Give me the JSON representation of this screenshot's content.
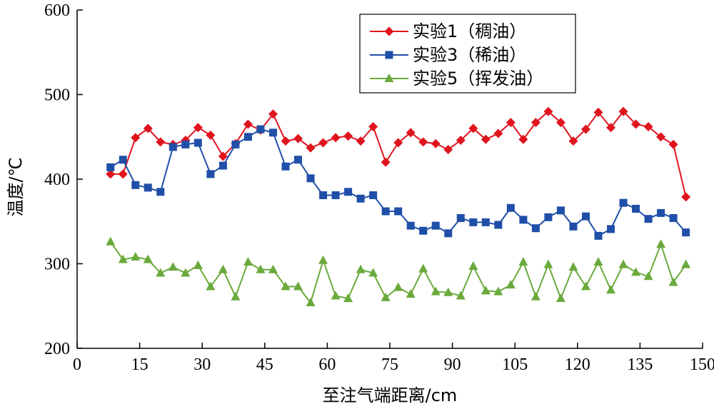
{
  "chart_data": {
    "type": "line",
    "title": "",
    "xlabel": "至注气端距离/cm",
    "ylabel": "温度/℃",
    "xlim": [
      0,
      150
    ],
    "ylim": [
      200,
      600
    ],
    "xticks": [
      0,
      15,
      30,
      45,
      60,
      75,
      90,
      105,
      120,
      135,
      150
    ],
    "yticks": [
      200,
      300,
      400,
      500,
      600
    ],
    "x_tick_labels": [
      "0",
      "15",
      "30",
      "45",
      "60",
      "75",
      "90",
      "105",
      "120",
      "135",
      "150"
    ],
    "y_tick_labels": [
      "200",
      "300",
      "400",
      "500",
      "600"
    ],
    "grid": false,
    "legend_position": "top-right",
    "series": [
      {
        "name": "实验1（稠油）",
        "color": "#e0141e",
        "marker": "diamond",
        "x": [
          8,
          11,
          14,
          17,
          20,
          23,
          26,
          29,
          32,
          35,
          38,
          41,
          44,
          47,
          50,
          53,
          56,
          59,
          62,
          65,
          68,
          71,
          74,
          77,
          80,
          83,
          86,
          89,
          92,
          95,
          98,
          101,
          104,
          107,
          110,
          113,
          116,
          119,
          122,
          125,
          128,
          131,
          134,
          137,
          140,
          143,
          146
        ],
        "y": [
          406,
          406,
          449,
          460,
          444,
          441,
          446,
          461,
          452,
          427,
          442,
          465,
          458,
          477,
          445,
          448,
          437,
          443,
          449,
          451,
          445,
          462,
          420,
          443,
          455,
          444,
          442,
          435,
          446,
          460,
          447,
          454,
          467,
          447,
          467,
          480,
          467,
          445,
          459,
          479,
          461,
          480,
          465,
          462,
          450,
          441,
          379
        ]
      },
      {
        "name": "实验3（稀油）",
        "color": "#1f4fa8",
        "marker": "square",
        "x": [
          8,
          11,
          14,
          17,
          20,
          23,
          26,
          29,
          32,
          35,
          38,
          41,
          44,
          47,
          50,
          53,
          56,
          59,
          62,
          65,
          68,
          71,
          74,
          77,
          80,
          83,
          86,
          89,
          92,
          95,
          98,
          101,
          104,
          107,
          110,
          113,
          116,
          119,
          122,
          125,
          128,
          131,
          134,
          137,
          140,
          143,
          146
        ],
        "y": [
          414,
          423,
          393,
          390,
          385,
          438,
          441,
          443,
          406,
          416,
          441,
          450,
          459,
          455,
          415,
          423,
          401,
          381,
          381,
          385,
          377,
          381,
          362,
          362,
          345,
          339,
          345,
          336,
          354,
          349,
          349,
          346,
          366,
          352,
          342,
          355,
          363,
          344,
          356,
          333,
          341,
          372,
          365,
          353,
          360,
          354,
          337
        ]
      },
      {
        "name": "实验5（挥发油）",
        "color": "#6aaa3c",
        "marker": "triangle",
        "x": [
          8,
          11,
          14,
          17,
          20,
          23,
          26,
          29,
          32,
          35,
          38,
          41,
          44,
          47,
          50,
          53,
          56,
          59,
          62,
          65,
          68,
          71,
          74,
          77,
          80,
          83,
          86,
          89,
          92,
          95,
          98,
          101,
          104,
          107,
          110,
          113,
          116,
          119,
          122,
          125,
          128,
          131,
          134,
          137,
          140,
          143,
          146
        ],
        "y": [
          326,
          305,
          308,
          305,
          289,
          296,
          289,
          298,
          273,
          293,
          261,
          302,
          293,
          293,
          273,
          273,
          254,
          304,
          262,
          259,
          293,
          289,
          260,
          272,
          264,
          294,
          267,
          266,
          262,
          297,
          268,
          267,
          275,
          302,
          261,
          299,
          259,
          296,
          273,
          302,
          269,
          299,
          290,
          285,
          323,
          278,
          299
        ]
      }
    ]
  }
}
